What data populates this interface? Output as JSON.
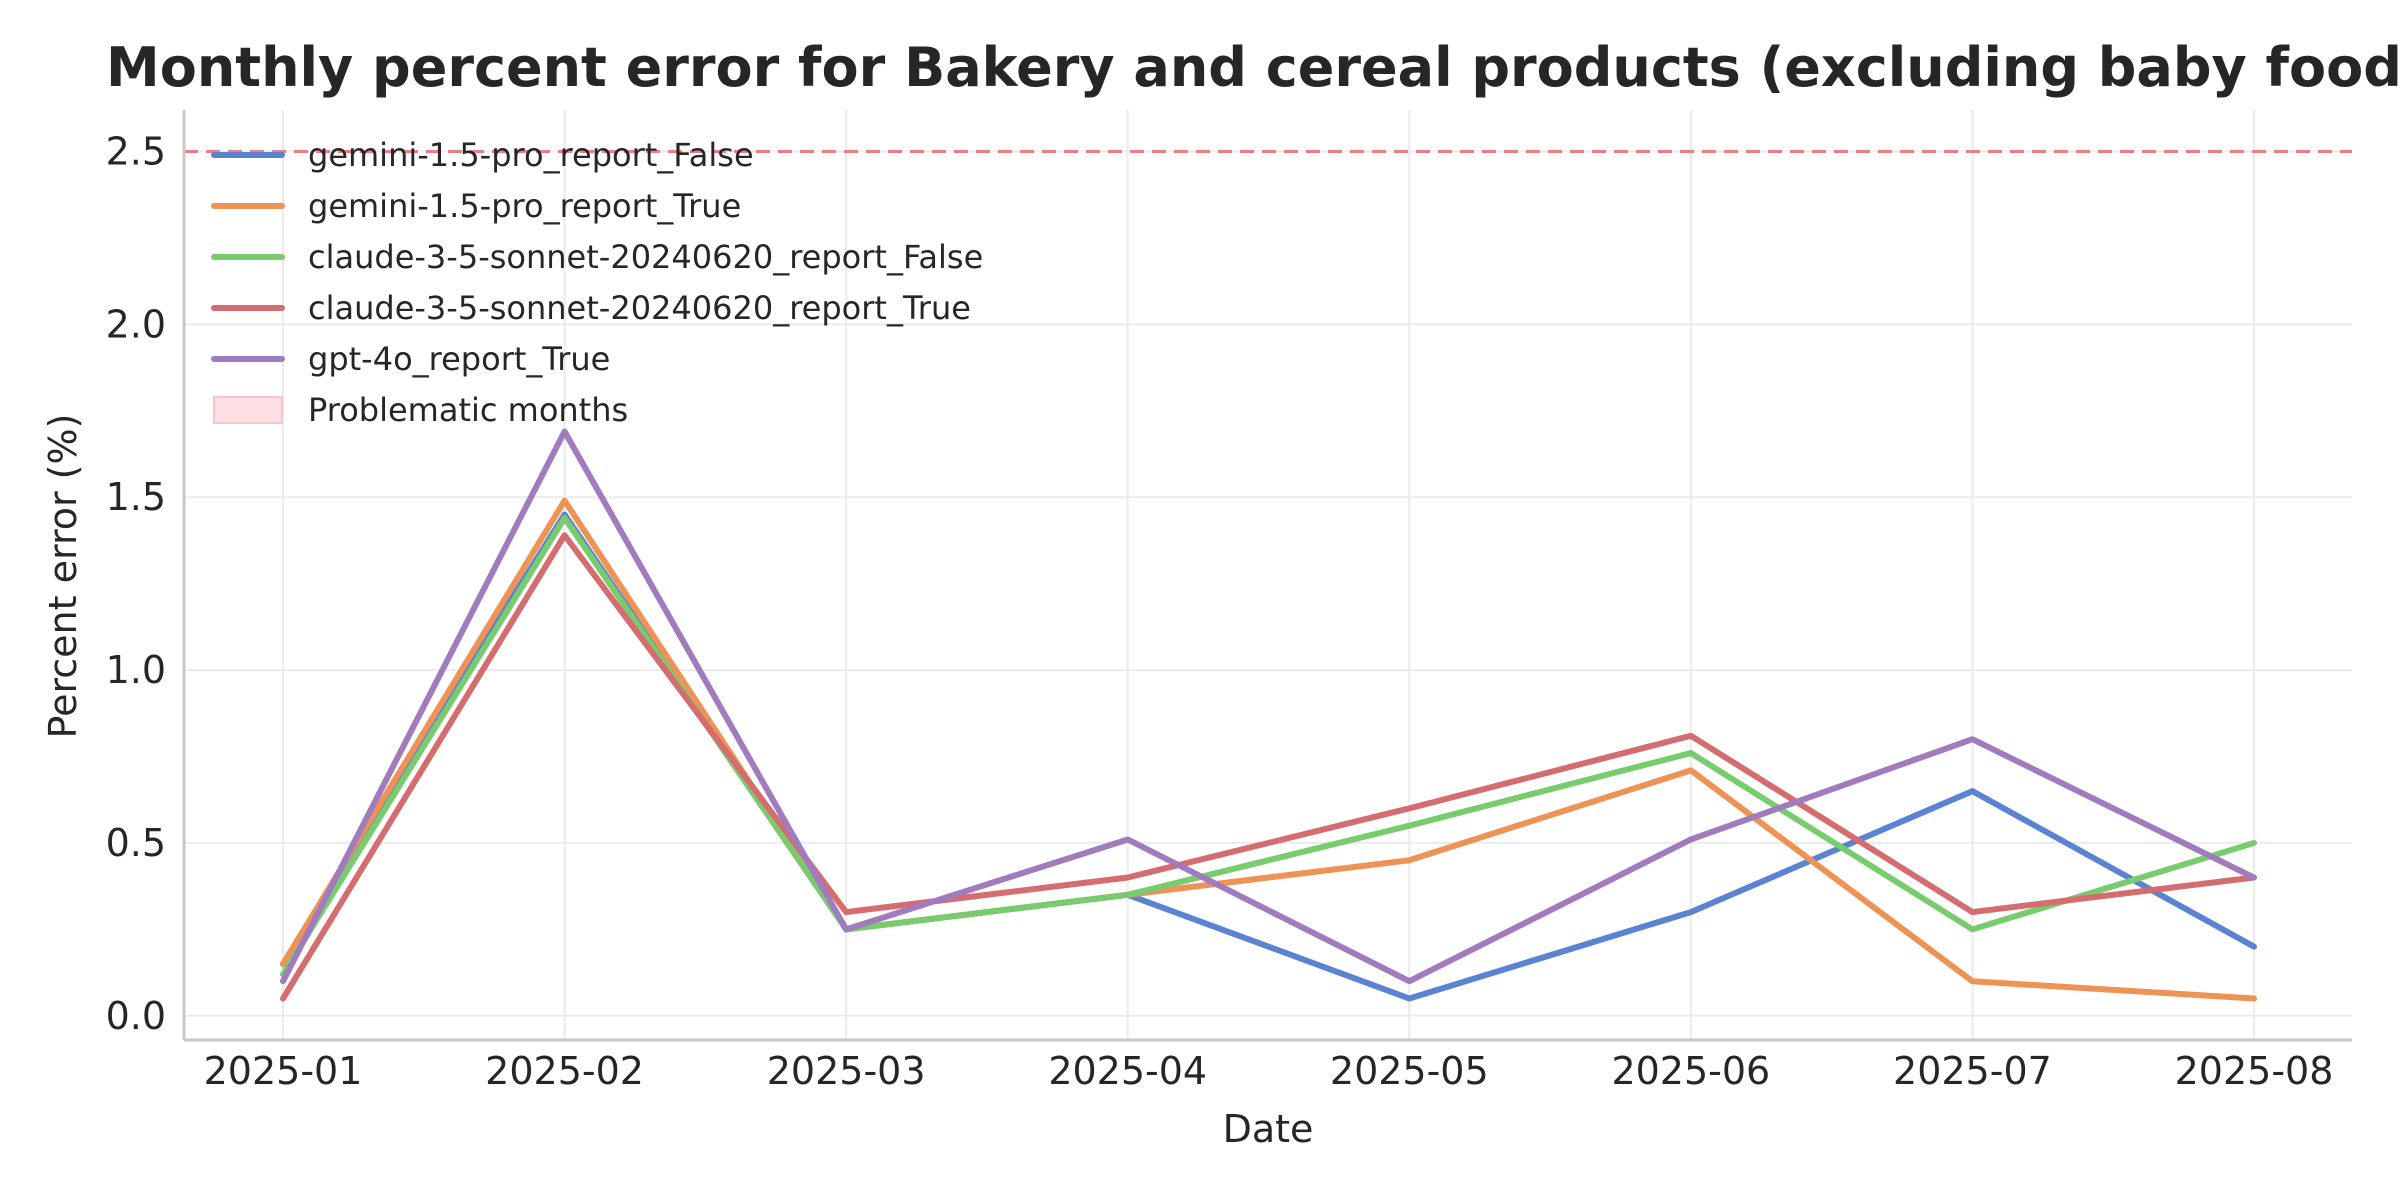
{
  "chart_data": {
    "type": "line",
    "title": "Monthly percent error for Bakery and cereal products (excluding baby food)",
    "xlabel": "Date",
    "ylabel": "Percent error (%)",
    "categories": [
      "2025-01",
      "2025-02",
      "2025-03",
      "2025-04",
      "2025-05",
      "2025-06",
      "2025-07",
      "2025-08"
    ],
    "yticks": [
      "0.0",
      "0.5",
      "1.0",
      "1.5",
      "2.0",
      "2.5"
    ],
    "ylim": [
      -0.07,
      2.62
    ],
    "grid": true,
    "legend_position": "top-left",
    "threshold": {
      "value": 2.5,
      "color": "#f07c84",
      "style": "dashed"
    },
    "series": [
      {
        "name": "gemini-1.5-pro_report_False",
        "color": "#5a83d2",
        "values": [
          0.15,
          1.45,
          0.25,
          0.35,
          0.05,
          0.3,
          0.65,
          0.2
        ]
      },
      {
        "name": "gemini-1.5-pro_report_True",
        "color": "#ee9256",
        "values": [
          0.15,
          1.49,
          0.25,
          0.35,
          0.45,
          0.71,
          0.1,
          0.05
        ]
      },
      {
        "name": "claude-3-5-sonnet-20240620_report_False",
        "color": "#78cc6e",
        "values": [
          0.12,
          1.44,
          0.25,
          0.35,
          0.55,
          0.76,
          0.25,
          0.5
        ]
      },
      {
        "name": "claude-3-5-sonnet-20240620_report_True",
        "color": "#d56c6f",
        "values": [
          0.05,
          1.39,
          0.3,
          0.4,
          0.6,
          0.81,
          0.3,
          0.4
        ]
      },
      {
        "name": "gpt-4o_report_True",
        "color": "#a07cbf",
        "values": [
          0.1,
          1.69,
          0.25,
          0.51,
          0.1,
          0.51,
          0.8,
          0.4
        ]
      }
    ],
    "shaded_legend_entry": {
      "name": "Problematic months",
      "color": "#fbdfe2",
      "edge": "#f6c4ca"
    }
  }
}
